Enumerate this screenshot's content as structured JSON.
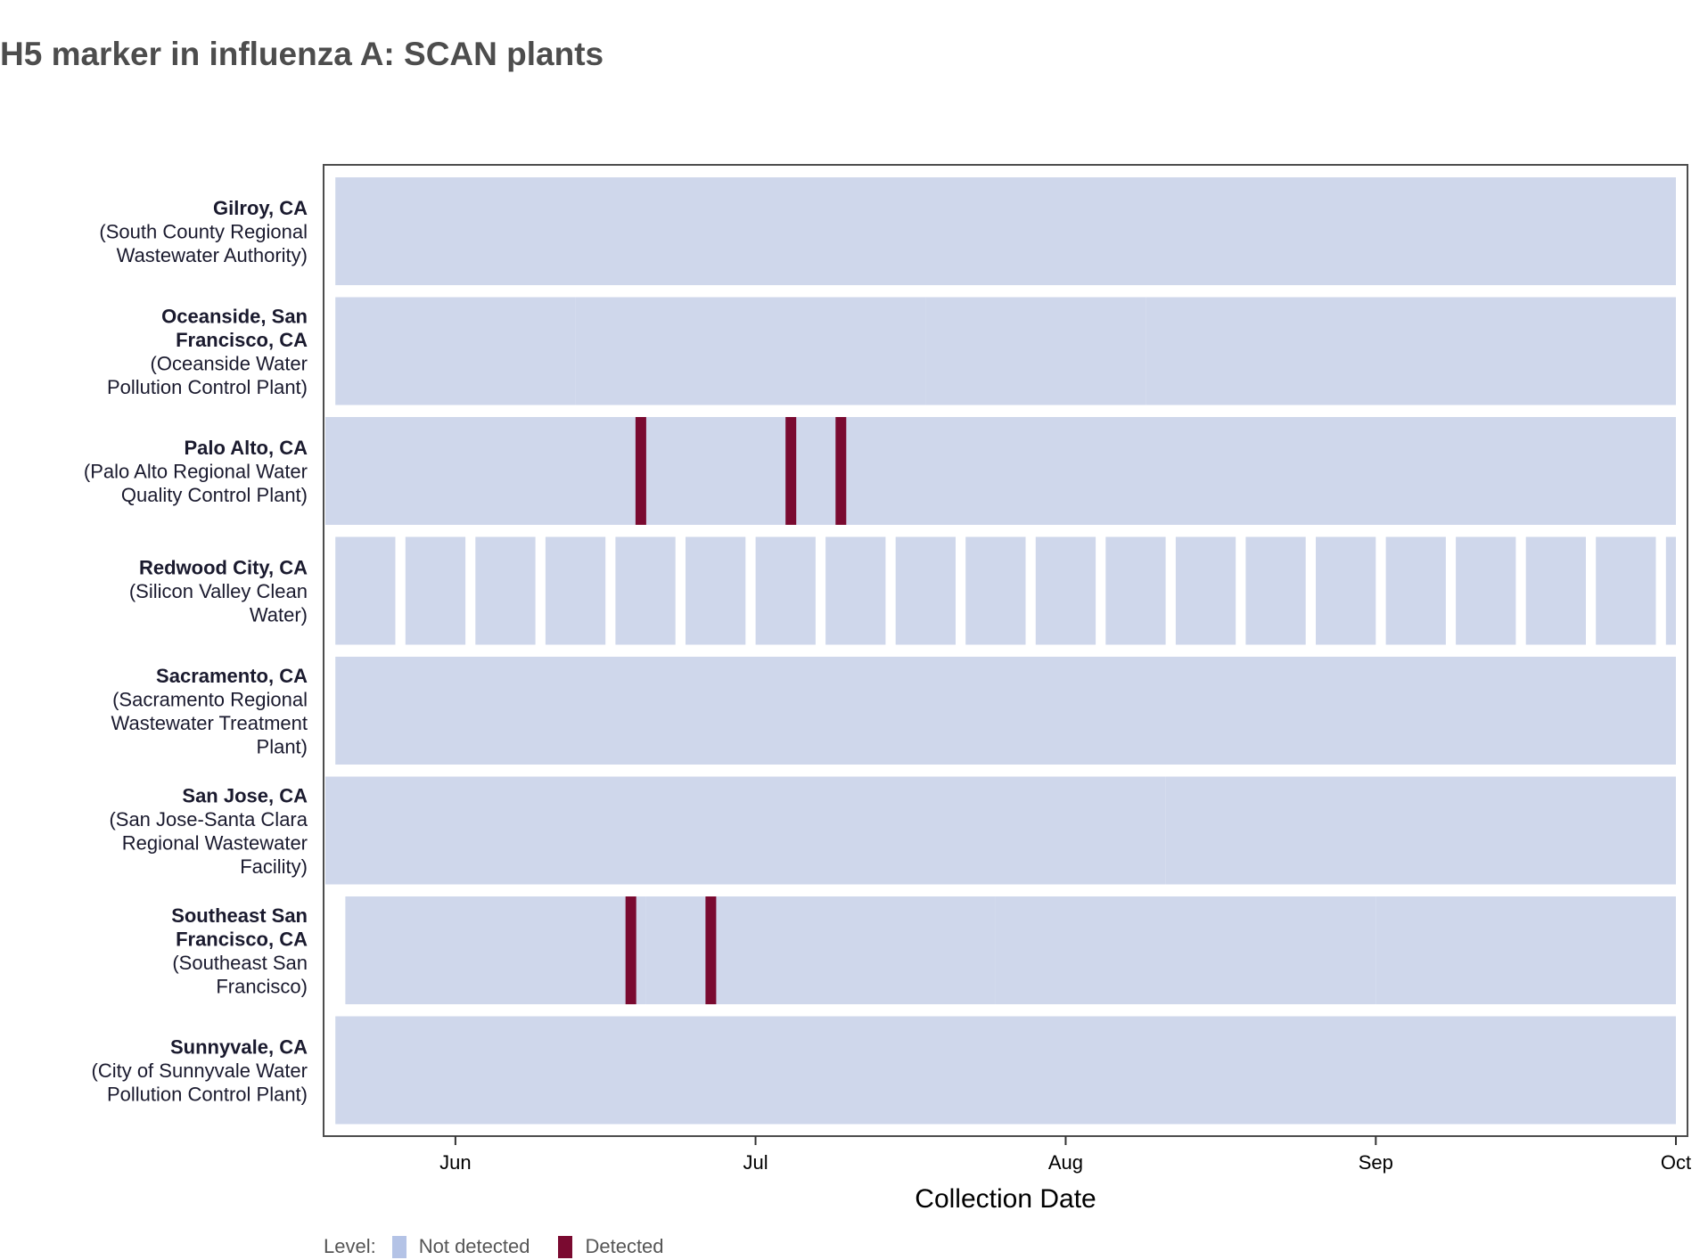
{
  "chart_data": {
    "type": "heatmap",
    "title": "H5 marker in influenza A: SCAN plants",
    "xlabel": "Collection Date",
    "ylabel": "",
    "x_range": [
      "2024-05-19",
      "2024-10-01"
    ],
    "x_ticks": [
      {
        "date": "2024-06-01",
        "label": "Jun"
      },
      {
        "date": "2024-07-01",
        "label": "Jul"
      },
      {
        "date": "2024-08-01",
        "label": "Aug"
      },
      {
        "date": "2024-09-01",
        "label": "Sep"
      },
      {
        "date": "2024-10-01",
        "label": "Oct"
      }
    ],
    "levels": [
      {
        "name": "Not detected",
        "color": "#cfd7eb",
        "legend_color": "#b4c3e6"
      },
      {
        "name": "Detected",
        "color": "#7a0a30",
        "legend_color": "#7a0a30"
      }
    ],
    "rows": [
      {
        "name": "Gilroy, CA",
        "facility": "(South County Regional Wastewater Authority)",
        "name_lines": [
          "Gilroy, CA"
        ],
        "facility_lines": [
          "(South County Regional",
          "Wastewater Authority)"
        ],
        "segments": [
          [
            "2024-05-20",
            "2024-10-01"
          ]
        ],
        "detected": []
      },
      {
        "name": "Oceanside, San Francisco, CA",
        "facility": "(Oceanside Water Pollution Control Plant)",
        "name_lines": [
          "Oceanside, San",
          "Francisco, CA"
        ],
        "facility_lines": [
          "(Oceanside Water",
          "Pollution Control Plant)"
        ],
        "segments": [
          [
            "2024-05-20",
            "2024-06-12"
          ],
          [
            "2024-06-13",
            "2024-07-17"
          ],
          [
            "2024-07-18",
            "2024-08-08"
          ],
          [
            "2024-08-09",
            "2024-10-01"
          ]
        ],
        "detected": []
      },
      {
        "name": "Palo Alto, CA",
        "facility": "(Palo Alto Regional Water Quality Control Plant)",
        "name_lines": [
          "Palo Alto, CA"
        ],
        "facility_lines": [
          "(Palo Alto Regional Water",
          "Quality Control Plant)"
        ],
        "segments": [
          [
            "2024-05-19",
            "2024-09-30"
          ]
        ],
        "detected": [
          "2024-06-19",
          "2024-07-04",
          "2024-07-09"
        ]
      },
      {
        "name": "Redwood City, CA",
        "facility": "(Silicon Valley Clean Water)",
        "name_lines": [
          "Redwood City, CA"
        ],
        "facility_lines": [
          "(Silicon Valley Clean",
          "Water)"
        ],
        "segments": [
          [
            "2024-05-20",
            "2024-05-25"
          ],
          [
            "2024-05-27",
            "2024-06-01"
          ],
          [
            "2024-06-03",
            "2024-06-08"
          ],
          [
            "2024-06-10",
            "2024-06-15"
          ],
          [
            "2024-06-17",
            "2024-06-22"
          ],
          [
            "2024-06-24",
            "2024-06-29"
          ],
          [
            "2024-07-01",
            "2024-07-06"
          ],
          [
            "2024-07-08",
            "2024-07-13"
          ],
          [
            "2024-07-15",
            "2024-07-20"
          ],
          [
            "2024-07-22",
            "2024-07-27"
          ],
          [
            "2024-07-29",
            "2024-08-03"
          ],
          [
            "2024-08-05",
            "2024-08-10"
          ],
          [
            "2024-08-12",
            "2024-08-17"
          ],
          [
            "2024-08-19",
            "2024-08-24"
          ],
          [
            "2024-08-26",
            "2024-08-31"
          ],
          [
            "2024-09-02",
            "2024-09-07"
          ],
          [
            "2024-09-09",
            "2024-09-14"
          ],
          [
            "2024-09-16",
            "2024-09-21"
          ],
          [
            "2024-09-23",
            "2024-09-28"
          ],
          [
            "2024-09-30",
            "2024-10-01"
          ]
        ],
        "detected": []
      },
      {
        "name": "Sacramento, CA",
        "facility": "(Sacramento Regional Wastewater Treatment Plant)",
        "name_lines": [
          "Sacramento, CA"
        ],
        "facility_lines": [
          "(Sacramento Regional",
          "Wastewater Treatment",
          "Plant)"
        ],
        "segments": [
          [
            "2024-05-20",
            "2024-10-01"
          ]
        ],
        "detected": []
      },
      {
        "name": "San Jose, CA",
        "facility": "(San Jose-Santa Clara Regional Wastewater Facility)",
        "name_lines": [
          "San Jose, CA"
        ],
        "facility_lines": [
          "(San Jose-Santa Clara",
          "Regional Wastewater",
          "Facility)"
        ],
        "segments": [
          [
            "2024-05-19",
            "2024-08-10"
          ],
          [
            "2024-08-11",
            "2024-09-30"
          ]
        ],
        "detected": []
      },
      {
        "name": "Southeast San Francisco, CA",
        "facility": "(Southeast San Francisco)",
        "name_lines": [
          "Southeast San",
          "Francisco, CA"
        ],
        "facility_lines": [
          "(Southeast San",
          "Francisco)"
        ],
        "segments": [
          [
            "2024-05-21",
            "2024-06-19"
          ],
          [
            "2024-06-20",
            "2024-07-24"
          ],
          [
            "2024-07-25",
            "2024-08-31"
          ],
          [
            "2024-09-01",
            "2024-10-01"
          ]
        ],
        "detected": [
          "2024-06-18",
          "2024-06-26"
        ]
      },
      {
        "name": "Sunnyvale, CA",
        "facility": "(City of Sunnyvale Water Pollution Control Plant)",
        "name_lines": [
          "Sunnyvale, CA"
        ],
        "facility_lines": [
          "(City of Sunnyvale Water",
          "Pollution Control Plant)"
        ],
        "segments": [
          [
            "2024-05-20",
            "2024-10-01"
          ]
        ],
        "detected": []
      }
    ],
    "legend": {
      "title": "Level:",
      "items": [
        "Not detected",
        "Detected"
      ],
      "position": "bottom-left"
    }
  }
}
